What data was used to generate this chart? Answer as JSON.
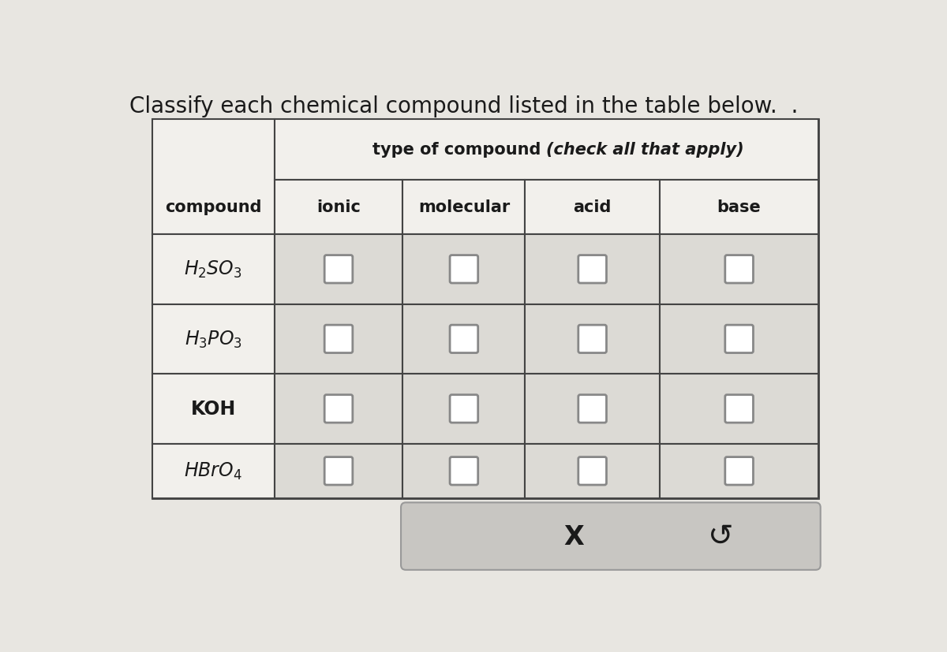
{
  "title": "Classify each chemical compound listed in the table below.  .",
  "title_fontsize": 20,
  "header1_plain": "type of compound ",
  "header1_italic": "(check all that apply)",
  "header2_cols": [
    "ionic",
    "molecular",
    "acid",
    "base"
  ],
  "compound_label": "compound",
  "compound_texts": [
    "$H_2SO_3$",
    "$H_3PO_3$",
    "KOH",
    "$HBrO_4$"
  ],
  "bg_color": "#e8e6e1",
  "cell_bg": "#dcdad5",
  "header_bg": "#f2f0ec",
  "border_color": "#444444",
  "text_color": "#1a1a1a",
  "bottom_panel_color": "#c8c6c2",
  "bottom_panel_edge": "#999999"
}
